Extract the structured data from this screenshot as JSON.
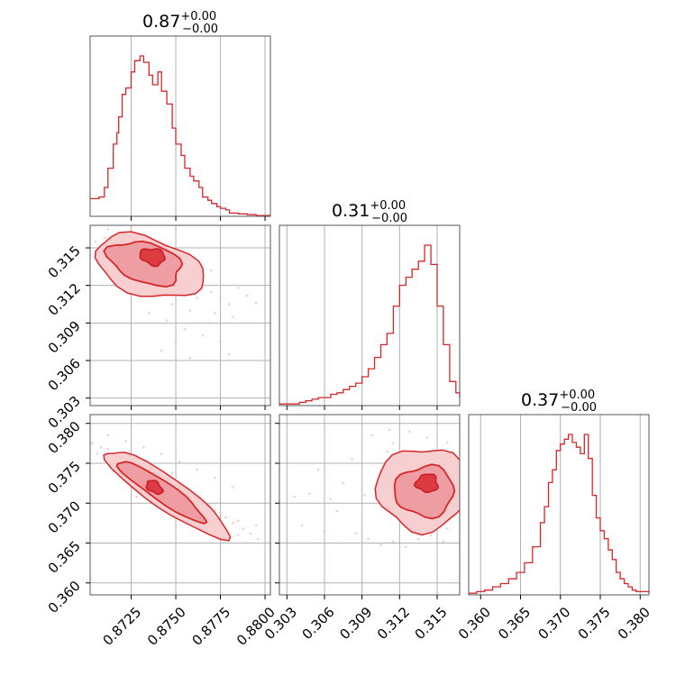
{
  "chart_data": {
    "type": "corner",
    "color": "#d62728",
    "parameters": [
      {
        "title_value": "0.87",
        "upper": "+0.00",
        "lower": "−0.00",
        "range": [
          0.8702,
          0.8803
        ],
        "ticks": [
          0.8725,
          0.875,
          0.8775,
          0.88
        ],
        "tick_labels": [
          "0.8725",
          "0.8750",
          "0.8775",
          "0.8800"
        ]
      },
      {
        "title_value": "0.31",
        "upper": "+0.00",
        "lower": "−0.00",
        "range": [
          0.3024,
          0.3168
        ],
        "ticks": [
          0.303,
          0.306,
          0.309,
          0.312,
          0.315
        ],
        "tick_labels": [
          "0.303",
          "0.306",
          "0.309",
          "0.312",
          "0.315"
        ]
      },
      {
        "title_value": "0.37",
        "upper": "+0.00",
        "lower": "−0.00",
        "range": [
          0.3585,
          0.3811
        ],
        "ticks": [
          0.36,
          0.365,
          0.37,
          0.375,
          0.38
        ],
        "tick_labels": [
          "0.360",
          "0.365",
          "0.370",
          "0.375",
          "0.380"
        ]
      }
    ],
    "hist1": {
      "x": [
        0.8702,
        0.8707,
        0.871,
        0.8712,
        0.8715,
        0.8717,
        0.8718,
        0.872,
        0.8722,
        0.8725,
        0.8727,
        0.873,
        0.8732,
        0.8735,
        0.8737,
        0.874,
        0.8742,
        0.8745,
        0.8748,
        0.875,
        0.8753,
        0.8755,
        0.8758,
        0.876,
        0.8763,
        0.8765,
        0.8768,
        0.877,
        0.8773,
        0.8775,
        0.8778,
        0.878,
        0.8785,
        0.879,
        0.8795,
        0.8803
      ],
      "y": [
        0.11,
        0.12,
        0.18,
        0.3,
        0.45,
        0.52,
        0.62,
        0.76,
        0.8,
        0.9,
        0.97,
        1.0,
        0.96,
        0.88,
        0.82,
        0.9,
        0.78,
        0.7,
        0.55,
        0.45,
        0.38,
        0.3,
        0.25,
        0.22,
        0.18,
        0.12,
        0.1,
        0.08,
        0.06,
        0.05,
        0.04,
        0.02,
        0.015,
        0.01,
        0.005,
        0.005
      ]
    },
    "hist2": {
      "x": [
        0.3024,
        0.3035,
        0.304,
        0.3045,
        0.305,
        0.3055,
        0.306,
        0.3065,
        0.307,
        0.3075,
        0.308,
        0.3085,
        0.309,
        0.3095,
        0.31,
        0.3105,
        0.311,
        0.3115,
        0.312,
        0.3125,
        0.313,
        0.3135,
        0.314,
        0.3145,
        0.315,
        0.3155,
        0.316,
        0.3165,
        0.3168
      ],
      "y": [
        0.01,
        0.01,
        0.02,
        0.03,
        0.04,
        0.05,
        0.05,
        0.07,
        0.08,
        0.1,
        0.12,
        0.14,
        0.18,
        0.23,
        0.3,
        0.38,
        0.45,
        0.62,
        0.75,
        0.8,
        0.85,
        0.9,
        1.0,
        0.88,
        0.62,
        0.38,
        0.15,
        0.08,
        0.05
      ]
    },
    "hist3": {
      "x": [
        0.3585,
        0.3595,
        0.3605,
        0.3615,
        0.3625,
        0.3635,
        0.3645,
        0.3655,
        0.3665,
        0.3675,
        0.368,
        0.3685,
        0.369,
        0.3695,
        0.37,
        0.3705,
        0.371,
        0.3715,
        0.372,
        0.3725,
        0.373,
        0.3735,
        0.374,
        0.3745,
        0.375,
        0.3755,
        0.376,
        0.3765,
        0.377,
        0.3775,
        0.378,
        0.3785,
        0.379,
        0.3795,
        0.3811
      ],
      "y": [
        0.01,
        0.02,
        0.03,
        0.05,
        0.07,
        0.1,
        0.14,
        0.2,
        0.3,
        0.45,
        0.55,
        0.7,
        0.78,
        0.9,
        0.94,
        0.97,
        1.0,
        0.95,
        0.92,
        0.88,
        1.0,
        0.85,
        0.62,
        0.48,
        0.4,
        0.35,
        0.28,
        0.22,
        0.14,
        0.1,
        0.07,
        0.05,
        0.03,
        0.02,
        0.01
      ]
    },
    "joint_x1_x2": {
      "samples": [
        [
          0.8705,
          0.3155
        ],
        [
          0.871,
          0.3158
        ],
        [
          0.8715,
          0.3152
        ],
        [
          0.872,
          0.3148
        ],
        [
          0.8725,
          0.315
        ],
        [
          0.873,
          0.3145
        ],
        [
          0.8735,
          0.3147
        ],
        [
          0.874,
          0.3142
        ],
        [
          0.8745,
          0.3138
        ],
        [
          0.875,
          0.3135
        ],
        [
          0.8755,
          0.313
        ],
        [
          0.876,
          0.3128
        ],
        [
          0.8765,
          0.312
        ],
        [
          0.877,
          0.3115
        ],
        [
          0.8775,
          0.311
        ],
        [
          0.878,
          0.3105
        ],
        [
          0.8722,
          0.3135
        ],
        [
          0.8732,
          0.313
        ],
        [
          0.8742,
          0.3122
        ],
        [
          0.8752,
          0.3118
        ],
        [
          0.8762,
          0.311
        ],
        [
          0.8772,
          0.3098
        ],
        [
          0.8782,
          0.3095
        ],
        [
          0.8728,
          0.312
        ],
        [
          0.8738,
          0.3112
        ],
        [
          0.8748,
          0.3105
        ],
        [
          0.8758,
          0.31
        ],
        [
          0.8768,
          0.309
        ],
        [
          0.8712,
          0.3165
        ],
        [
          0.8718,
          0.3162
        ],
        [
          0.8735,
          0.3155
        ],
        [
          0.8745,
          0.3152
        ],
        [
          0.876,
          0.314
        ],
        [
          0.877,
          0.3132
        ],
        [
          0.8785,
          0.3118
        ],
        [
          0.879,
          0.3112
        ],
        [
          0.8795,
          0.3106
        ],
        [
          0.8725,
          0.3105
        ],
        [
          0.8735,
          0.3098
        ],
        [
          0.8745,
          0.3092
        ],
        [
          0.8755,
          0.3085
        ],
        [
          0.8765,
          0.308
        ],
        [
          0.8775,
          0.3075
        ],
        [
          0.878,
          0.3065
        ],
        [
          0.875,
          0.3075
        ],
        [
          0.8742,
          0.3068
        ],
        [
          0.8758,
          0.3062
        ],
        [
          0.8708,
          0.314
        ],
        [
          0.8716,
          0.3135
        ],
        [
          0.8724,
          0.3128
        ]
      ],
      "contour_levels": 3
    },
    "joint_x1_x3": {
      "samples": [
        [
          0.8703,
          0.3775
        ],
        [
          0.8708,
          0.377
        ],
        [
          0.8712,
          0.3768
        ],
        [
          0.8718,
          0.3762
        ],
        [
          0.8722,
          0.3755
        ],
        [
          0.8728,
          0.375
        ],
        [
          0.8732,
          0.3745
        ],
        [
          0.8738,
          0.3738
        ],
        [
          0.8742,
          0.373
        ],
        [
          0.8748,
          0.3725
        ],
        [
          0.8752,
          0.3718
        ],
        [
          0.8758,
          0.371
        ],
        [
          0.8762,
          0.3705
        ],
        [
          0.8768,
          0.3698
        ],
        [
          0.8772,
          0.369
        ],
        [
          0.8778,
          0.3682
        ],
        [
          0.8782,
          0.3675
        ],
        [
          0.8788,
          0.3668
        ],
        [
          0.8792,
          0.3662
        ],
        [
          0.8796,
          0.3655
        ],
        [
          0.8715,
          0.374
        ],
        [
          0.8725,
          0.3735
        ],
        [
          0.8735,
          0.3728
        ],
        [
          0.8745,
          0.372
        ],
        [
          0.8755,
          0.371
        ],
        [
          0.8765,
          0.3698
        ],
        [
          0.8775,
          0.3688
        ],
        [
          0.8785,
          0.3678
        ],
        [
          0.8712,
          0.3785
        ],
        [
          0.8722,
          0.3778
        ],
        [
          0.8732,
          0.377
        ],
        [
          0.8742,
          0.3762
        ],
        [
          0.8752,
          0.3752
        ],
        [
          0.8762,
          0.3742
        ],
        [
          0.8772,
          0.3732
        ],
        [
          0.8782,
          0.372
        ],
        [
          0.8745,
          0.3695
        ],
        [
          0.8755,
          0.3685
        ],
        [
          0.8765,
          0.3675
        ],
        [
          0.8775,
          0.3668
        ],
        [
          0.8785,
          0.366
        ],
        [
          0.879,
          0.365
        ],
        [
          0.8735,
          0.3745
        ],
        [
          0.8748,
          0.3738
        ],
        [
          0.8728,
          0.3708
        ],
        [
          0.8738,
          0.37
        ],
        [
          0.876,
          0.368
        ],
        [
          0.877,
          0.3672
        ],
        [
          0.8795,
          0.3672
        ],
        [
          0.8706,
          0.3762
        ]
      ],
      "contour_levels": 3
    },
    "joint_x2_x3": {
      "samples": [
        [
          0.3105,
          0.374
        ],
        [
          0.311,
          0.3765
        ],
        [
          0.3115,
          0.3775
        ],
        [
          0.312,
          0.3755
        ],
        [
          0.3125,
          0.3735
        ],
        [
          0.313,
          0.3745
        ],
        [
          0.3135,
          0.376
        ],
        [
          0.314,
          0.375
        ],
        [
          0.3145,
          0.374
        ],
        [
          0.315,
          0.3735
        ],
        [
          0.3155,
          0.372
        ],
        [
          0.316,
          0.371
        ],
        [
          0.3165,
          0.3725
        ],
        [
          0.3108,
          0.3695
        ],
        [
          0.3118,
          0.3688
        ],
        [
          0.3128,
          0.3682
        ],
        [
          0.3138,
          0.3676
        ],
        [
          0.3148,
          0.3672
        ],
        [
          0.3158,
          0.3668
        ],
        [
          0.3112,
          0.3712
        ],
        [
          0.3122,
          0.372
        ],
        [
          0.3132,
          0.3705
        ],
        [
          0.3142,
          0.3712
        ],
        [
          0.3152,
          0.3698
        ],
        [
          0.3162,
          0.3705
        ],
        [
          0.3075,
          0.3725
        ],
        [
          0.307,
          0.369
        ],
        [
          0.3082,
          0.3755
        ],
        [
          0.3065,
          0.3705
        ],
        [
          0.306,
          0.3665
        ],
        [
          0.3085,
          0.3662
        ],
        [
          0.3095,
          0.3655
        ],
        [
          0.3105,
          0.3648
        ],
        [
          0.3115,
          0.3652
        ],
        [
          0.3125,
          0.3645
        ],
        [
          0.3135,
          0.3655
        ],
        [
          0.3145,
          0.366
        ],
        [
          0.3155,
          0.3652
        ],
        [
          0.3055,
          0.3742
        ],
        [
          0.3048,
          0.3712
        ],
        [
          0.3098,
          0.3785
        ],
        [
          0.3112,
          0.3792
        ],
        [
          0.3128,
          0.379
        ],
        [
          0.3142,
          0.3782
        ],
        [
          0.3158,
          0.3776
        ],
        [
          0.3165,
          0.3758
        ],
        [
          0.3168,
          0.3688
        ],
        [
          0.3036,
          0.3708
        ],
        [
          0.3042,
          0.3672
        ],
        [
          0.3092,
          0.371
        ]
      ],
      "contour_levels": 3
    }
  }
}
